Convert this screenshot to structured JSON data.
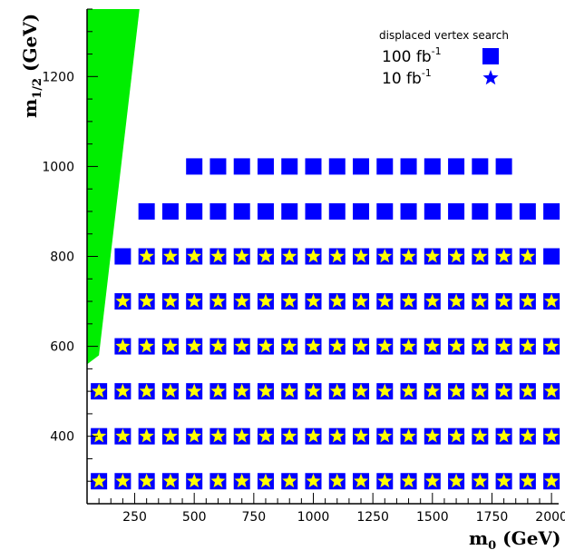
{
  "chart_data": {
    "type": "scatter",
    "title": "",
    "xlabel_main": "m",
    "xlabel_sub": "0",
    "xlabel_unit": " (GeV)",
    "ylabel_main": "m",
    "ylabel_sub": "1/2",
    "ylabel_unit": " (GeV)",
    "xlim": [
      50,
      2030
    ],
    "ylim": [
      250,
      1350
    ],
    "x_ticks": [
      250,
      500,
      750,
      1000,
      1250,
      1500,
      1750,
      2000
    ],
    "x_tick_labels": [
      "250",
      "500",
      "750",
      "1000",
      "1250",
      "1500",
      "1750",
      "2000"
    ],
    "y_ticks": [
      400,
      600,
      800,
      1000,
      1200
    ],
    "y_tick_labels": [
      "400",
      "600",
      "800",
      "1000",
      "1200"
    ],
    "legend": {
      "title": "displaced vertex search",
      "position": "top-right",
      "entries": [
        {
          "label_base": "100 fb",
          "label_exp": "-1",
          "marker": "square",
          "color": "#0000ff"
        },
        {
          "label_base": "10 fb",
          "label_exp": "-1",
          "marker": "star",
          "color": "#0000ff"
        }
      ]
    },
    "excluded_region": {
      "color": "#00ee00",
      "boundary": [
        [
          50,
          1350
        ],
        [
          270,
          1350
        ],
        [
          100,
          580
        ],
        [
          50,
          560
        ]
      ]
    },
    "colors": {
      "square": "#0000ff",
      "star_fill": "#ffff00",
      "star_legend": "#0000ff"
    },
    "series": [
      {
        "name": "100 fb-1",
        "marker": "square",
        "rows": [
          {
            "y": 1000,
            "x_from": 500,
            "x_to": 1800,
            "x_step": 100
          },
          {
            "y": 900,
            "x_from": 300,
            "x_to": 2000,
            "x_step": 100
          },
          {
            "y": 800,
            "x_from": 200,
            "x_to": 2000,
            "x_step": 100
          },
          {
            "y": 700,
            "x_from": 200,
            "x_to": 2000,
            "x_step": 100
          },
          {
            "y": 600,
            "x_from": 200,
            "x_to": 2000,
            "x_step": 100
          },
          {
            "y": 500,
            "x_from": 100,
            "x_to": 2000,
            "x_step": 100
          },
          {
            "y": 400,
            "x_from": 100,
            "x_to": 2000,
            "x_step": 100
          },
          {
            "y": 300,
            "x_from": 100,
            "x_to": 2000,
            "x_step": 100
          }
        ]
      },
      {
        "name": "10 fb-1",
        "marker": "star",
        "rows": [
          {
            "y": 800,
            "x_from": 300,
            "x_to": 1900,
            "x_step": 100
          },
          {
            "y": 700,
            "x_from": 200,
            "x_to": 2000,
            "x_step": 100
          },
          {
            "y": 600,
            "x_from": 200,
            "x_to": 2000,
            "x_step": 100
          },
          {
            "y": 500,
            "x_from": 100,
            "x_to": 2000,
            "x_step": 100
          },
          {
            "y": 400,
            "x_from": 100,
            "x_to": 2000,
            "x_step": 100
          },
          {
            "y": 300,
            "x_from": 100,
            "x_to": 2000,
            "x_step": 100
          }
        ]
      }
    ]
  }
}
